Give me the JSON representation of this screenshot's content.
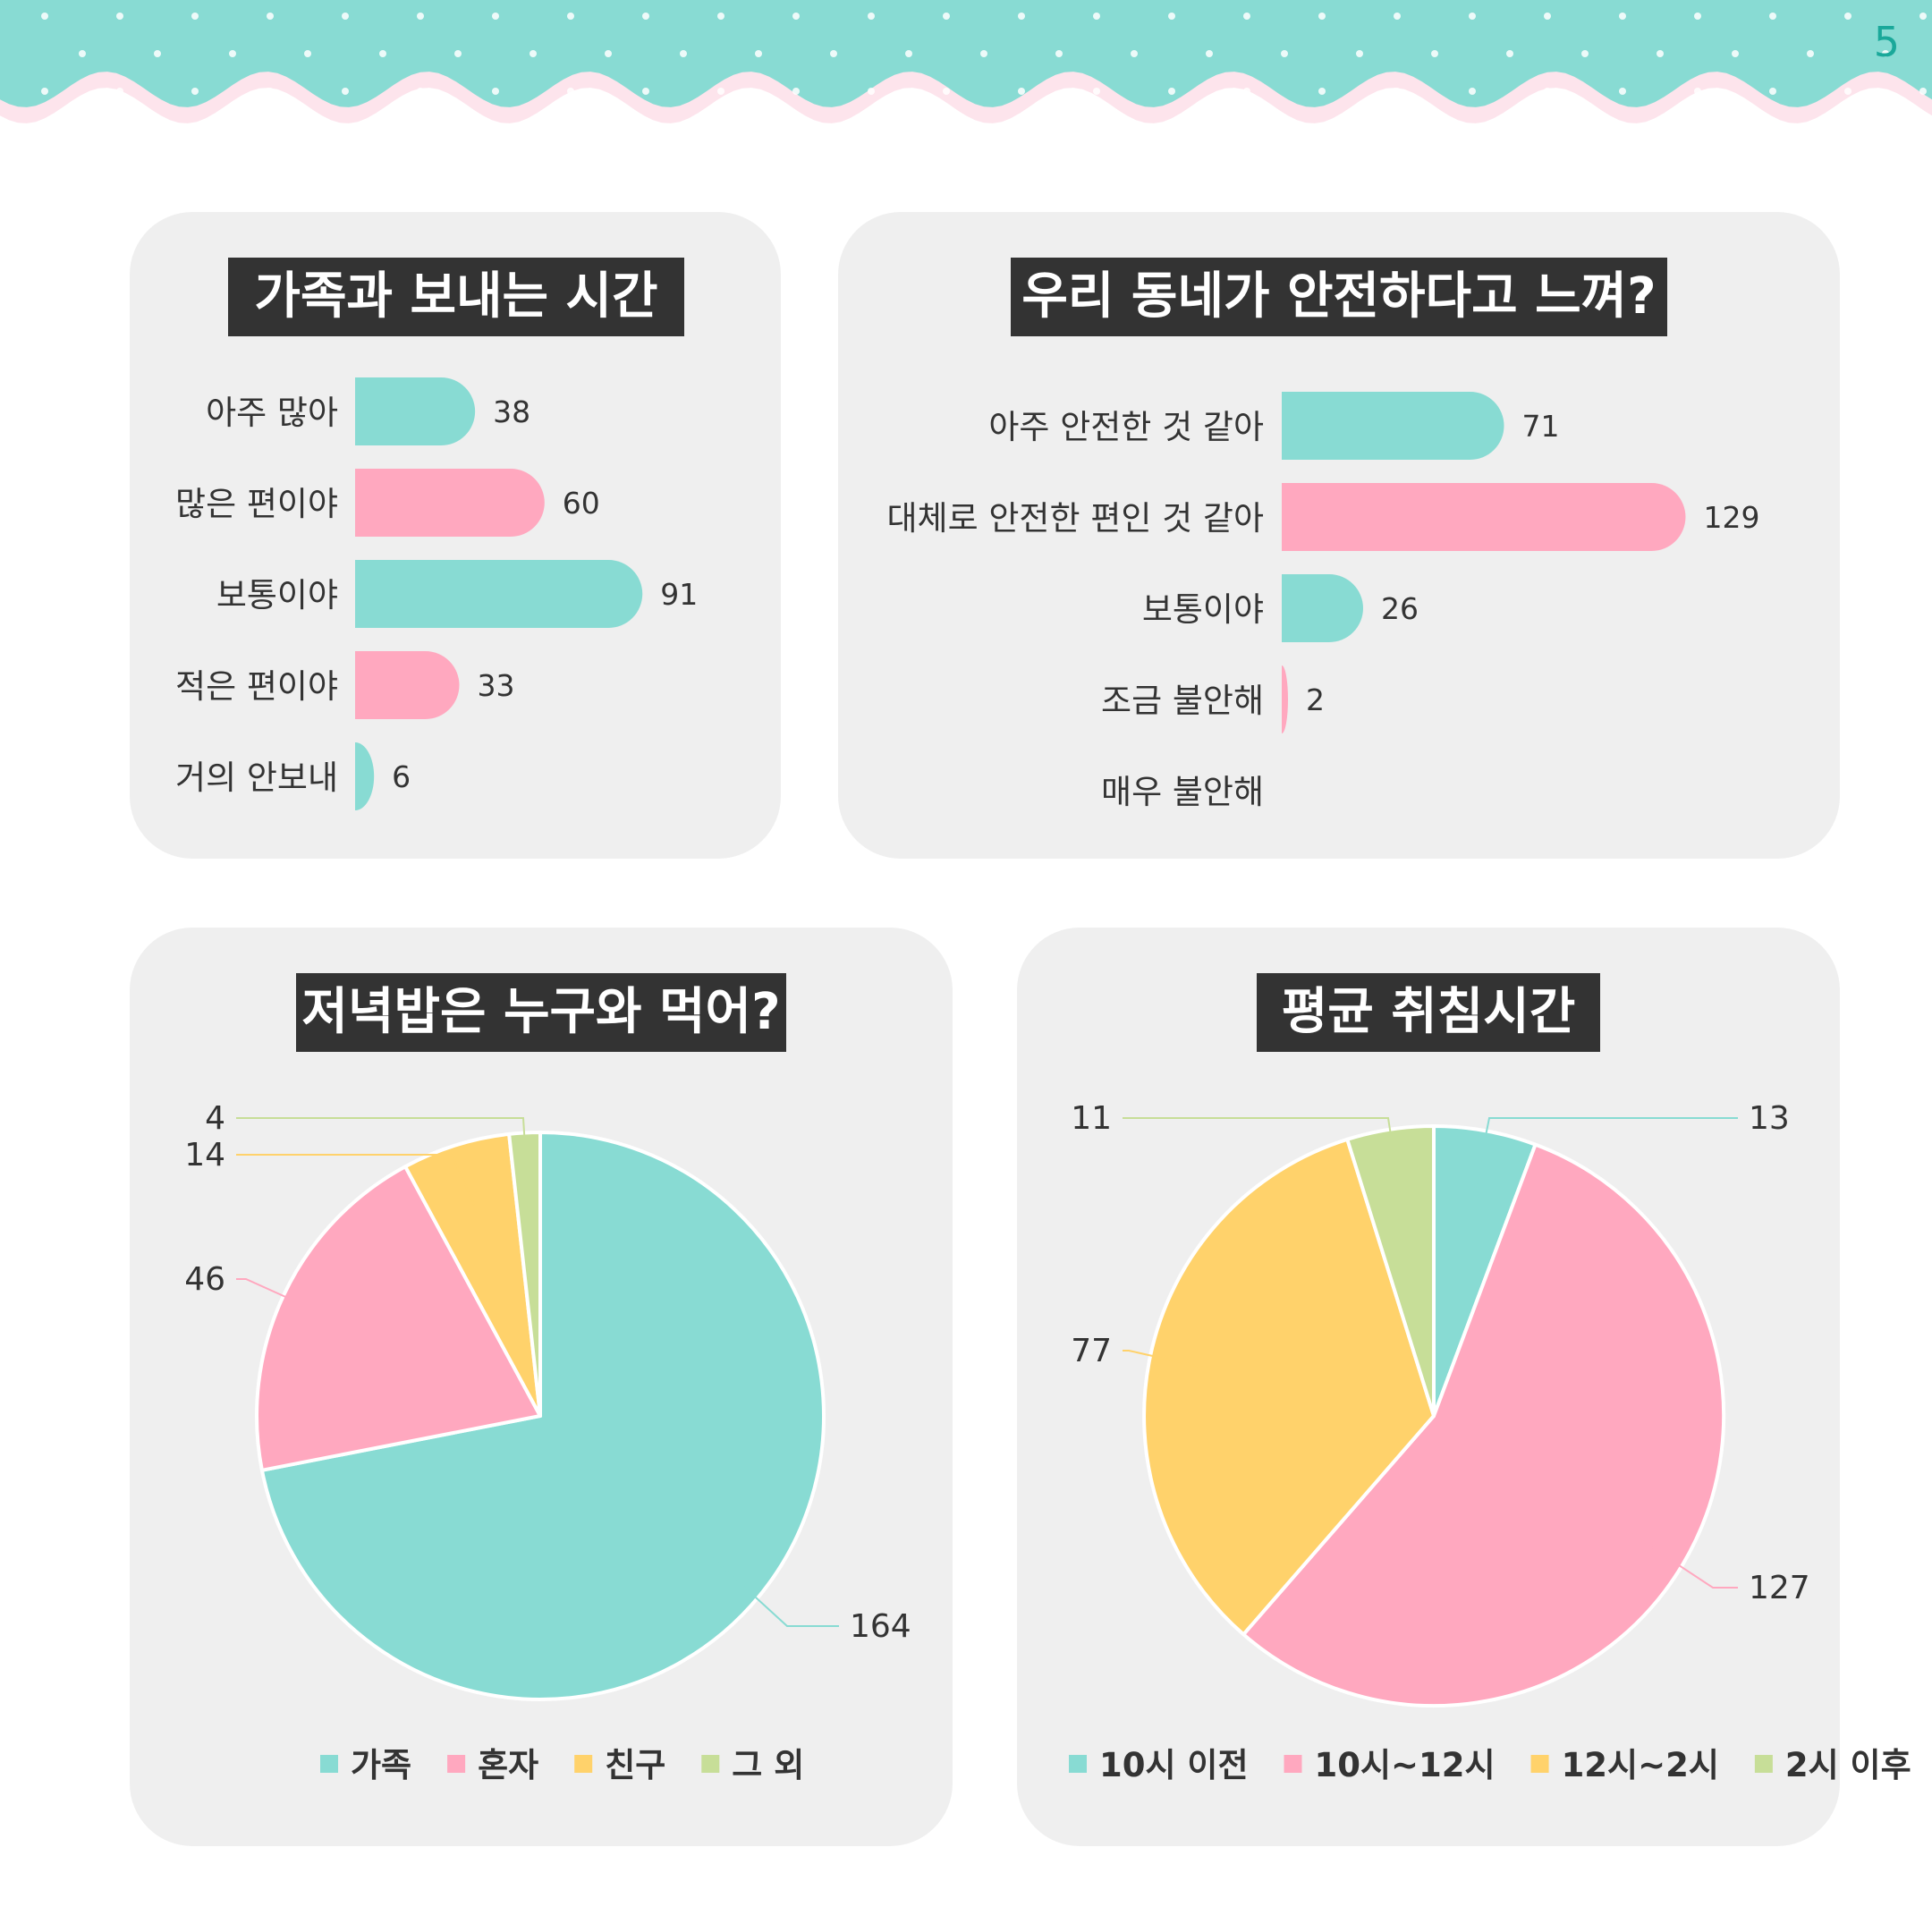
{
  "page_number": "5",
  "colors": {
    "teal": "#88dbd3",
    "pink": "#ffa8bf",
    "yellow": "#ffd26b",
    "green": "#c7de98",
    "banner": "#88dbd3",
    "banner_wave": "#fde4ec",
    "card": "#efefef",
    "title_bg": "#333333"
  },
  "chart_data": [
    {
      "type": "bar",
      "orientation": "horizontal",
      "title": "가족과 보내는 시간",
      "categories": [
        "아주 많아",
        "많은 편이야",
        "보통이야",
        "적은 편이야",
        "거의 안보내"
      ],
      "values": [
        38,
        60,
        91,
        33,
        6
      ],
      "value_labels": [
        "38",
        "60",
        "91",
        "33",
        "6"
      ],
      "bar_colors": [
        "#88dbd3",
        "#ffa8bf",
        "#88dbd3",
        "#ffa8bf",
        "#88dbd3"
      ],
      "xlim": [
        0,
        100
      ],
      "grid": false
    },
    {
      "type": "bar",
      "orientation": "horizontal",
      "title": "우리 동네가 안전하다고 느껴?",
      "categories": [
        "아주 안전한 것 같아",
        "대체로 안전한 편인 것 같아",
        "보통이야",
        "조금 불안해",
        "매우 불안해"
      ],
      "values": [
        71,
        129,
        26,
        2,
        0
      ],
      "value_labels": [
        "71",
        "129",
        "26",
        "2",
        ""
      ],
      "bar_colors": [
        "#88dbd3",
        "#ffa8bf",
        "#88dbd3",
        "#ffa8bf",
        "#88dbd3"
      ],
      "xlim": [
        0,
        140
      ],
      "grid": false
    },
    {
      "type": "pie",
      "title": "저녁밥은 누구와 먹어?",
      "labels": [
        "가족",
        "혼자",
        "친구",
        "그 외"
      ],
      "values": [
        164,
        46,
        14,
        4
      ],
      "value_labels": [
        "164",
        "46",
        "14",
        "4"
      ],
      "colors": [
        "#88dbd3",
        "#ffa8bf",
        "#ffd26b",
        "#c7de98"
      ],
      "legend": "bottom"
    },
    {
      "type": "pie",
      "title": "평균 취침시간",
      "labels": [
        "10시 이전",
        "10시~12시",
        "12시~2시",
        "2시 이후"
      ],
      "values": [
        13,
        127,
        77,
        11
      ],
      "value_labels": [
        "13",
        "127",
        "77",
        "11"
      ],
      "colors": [
        "#88dbd3",
        "#ffa8bf",
        "#ffd26b",
        "#c7de98"
      ],
      "legend": "bottom"
    }
  ]
}
